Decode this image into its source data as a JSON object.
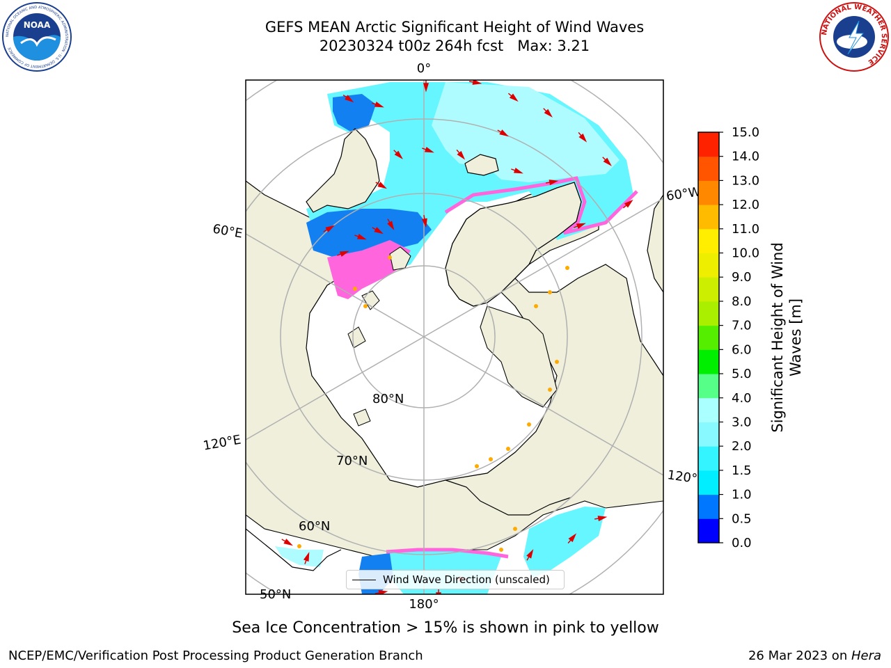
{
  "title": {
    "line1": "GEFS MEAN Arctic Significant Height of Wind Waves",
    "line2": "20230324 t00z 264h fcst   Max: 3.21"
  },
  "map": {
    "projection": "north-polar-stereographic",
    "lon_labels": [
      "0°",
      "60°E",
      "120°E",
      "180°",
      "120°W",
      "60°W"
    ],
    "lat_labels": [
      "80°N",
      "70°N",
      "60°N",
      "50°N"
    ],
    "colors": {
      "land": "#efefdc",
      "ocean_no_data": "#ffffff",
      "sea_ice": "#ff66dd",
      "ice_edge": "#ffaa00",
      "wave_arrow": "#dd0000",
      "grid": "#b0b0b0",
      "coastline": "#000000"
    }
  },
  "legend": {
    "label": "Wind Wave Direction (unscaled)"
  },
  "colorbar": {
    "label": "Significant Height of Wind Waves [m]",
    "label_line1": "Significant Height of Wind",
    "label_line2": "Waves [m]",
    "ticks": [
      "0.0",
      "0.5",
      "1.0",
      "1.5",
      "2.0",
      "3.0",
      "4.0",
      "5.0",
      "6.0",
      "7.0",
      "8.0",
      "9.0",
      "10.0",
      "11.0",
      "12.0",
      "13.0",
      "14.0",
      "15.0"
    ],
    "colors": [
      "#0000ff",
      "#0077ff",
      "#00eeff",
      "#33f4ff",
      "#88faff",
      "#aaffff",
      "#55ff88",
      "#00ee00",
      "#55ee00",
      "#aaee00",
      "#ccee00",
      "#eeee00",
      "#ffee00",
      "#ffbb00",
      "#ff8800",
      "#ff5500",
      "#ff2200"
    ]
  },
  "caption": "Sea Ice Concentration > 15% is shown in pink to yellow",
  "footer": {
    "left": "NCEP/EMC/Verification Post Processing Product Generation Branch",
    "date": "26 Mar 2023 on ",
    "host": "Hera"
  },
  "logos": {
    "left": {
      "text": "NOAA",
      "ring_text": "NATIONAL OCEANIC AND ATMOSPHERIC ADMINISTRATION · U.S. DEPARTMENT OF COMMERCE"
    },
    "right": {
      "ring_text": "NATIONAL WEATHER SERVICE"
    }
  }
}
